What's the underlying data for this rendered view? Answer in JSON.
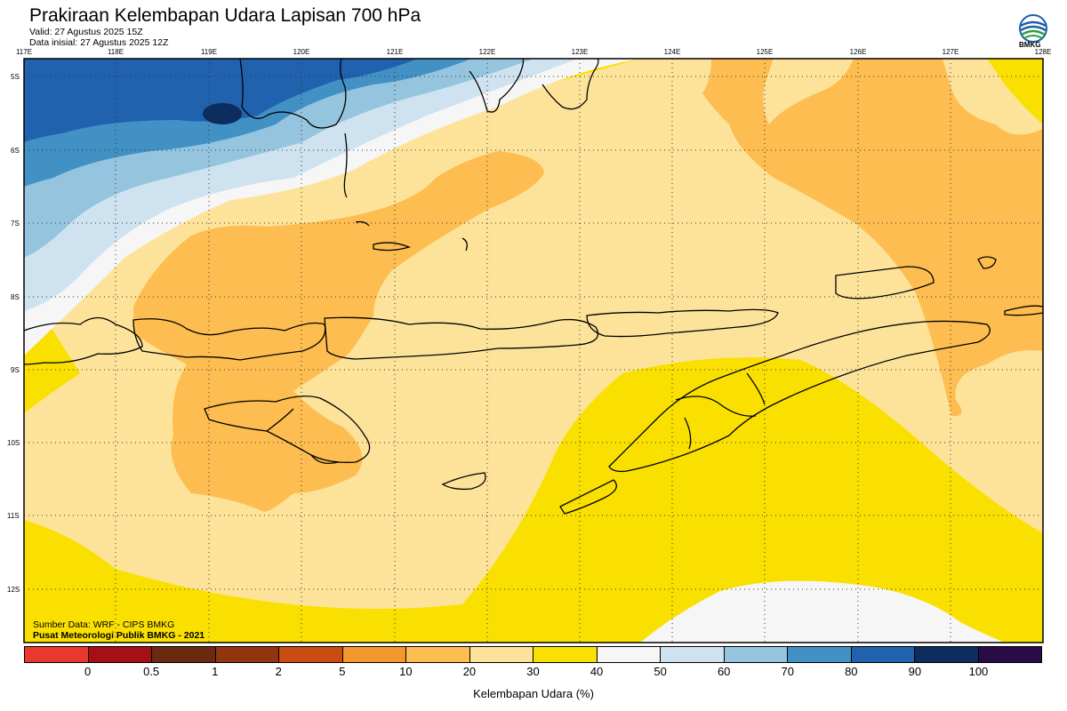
{
  "header": {
    "title": "Prakiraan Kelembapan Udara Lapisan 700 hPa",
    "valid": "Valid: 27 Agustus 2025 15Z",
    "init": "Data inisial: 27 Agustus 2025 12Z",
    "logo_text": "BMKG"
  },
  "map": {
    "lon_labels": [
      "117E",
      "118E",
      "119E",
      "120E",
      "121E",
      "122E",
      "123E",
      "124E",
      "125E",
      "126E",
      "127E",
      "128E"
    ],
    "lat_labels": [
      "5S",
      "6S",
      "7S",
      "8S",
      "9S",
      "10S",
      "11S",
      "12S"
    ]
  },
  "credits": {
    "source": "Sumber Data: WRF - CIPS BMKG",
    "org": "Pusat Meteorologi Publik BMKG - 2021"
  },
  "colorbar": {
    "colors": [
      "#e8392c",
      "#a50f15",
      "#6b2a10",
      "#933410",
      "#c94c10",
      "#f2962e",
      "#fdbd50",
      "#fde39a",
      "#fae000",
      "#f6f6f6",
      "#cfe2ef",
      "#94c4de",
      "#4291c5",
      "#2062ad",
      "#0c2d5e",
      "#2a0a47"
    ],
    "labels": [
      "0",
      "0.5",
      "1",
      "2",
      "5",
      "10",
      "20",
      "30",
      "40",
      "50",
      "60",
      "70",
      "80",
      "90",
      "100"
    ],
    "title": "Kelembapan Udara (%)"
  }
}
